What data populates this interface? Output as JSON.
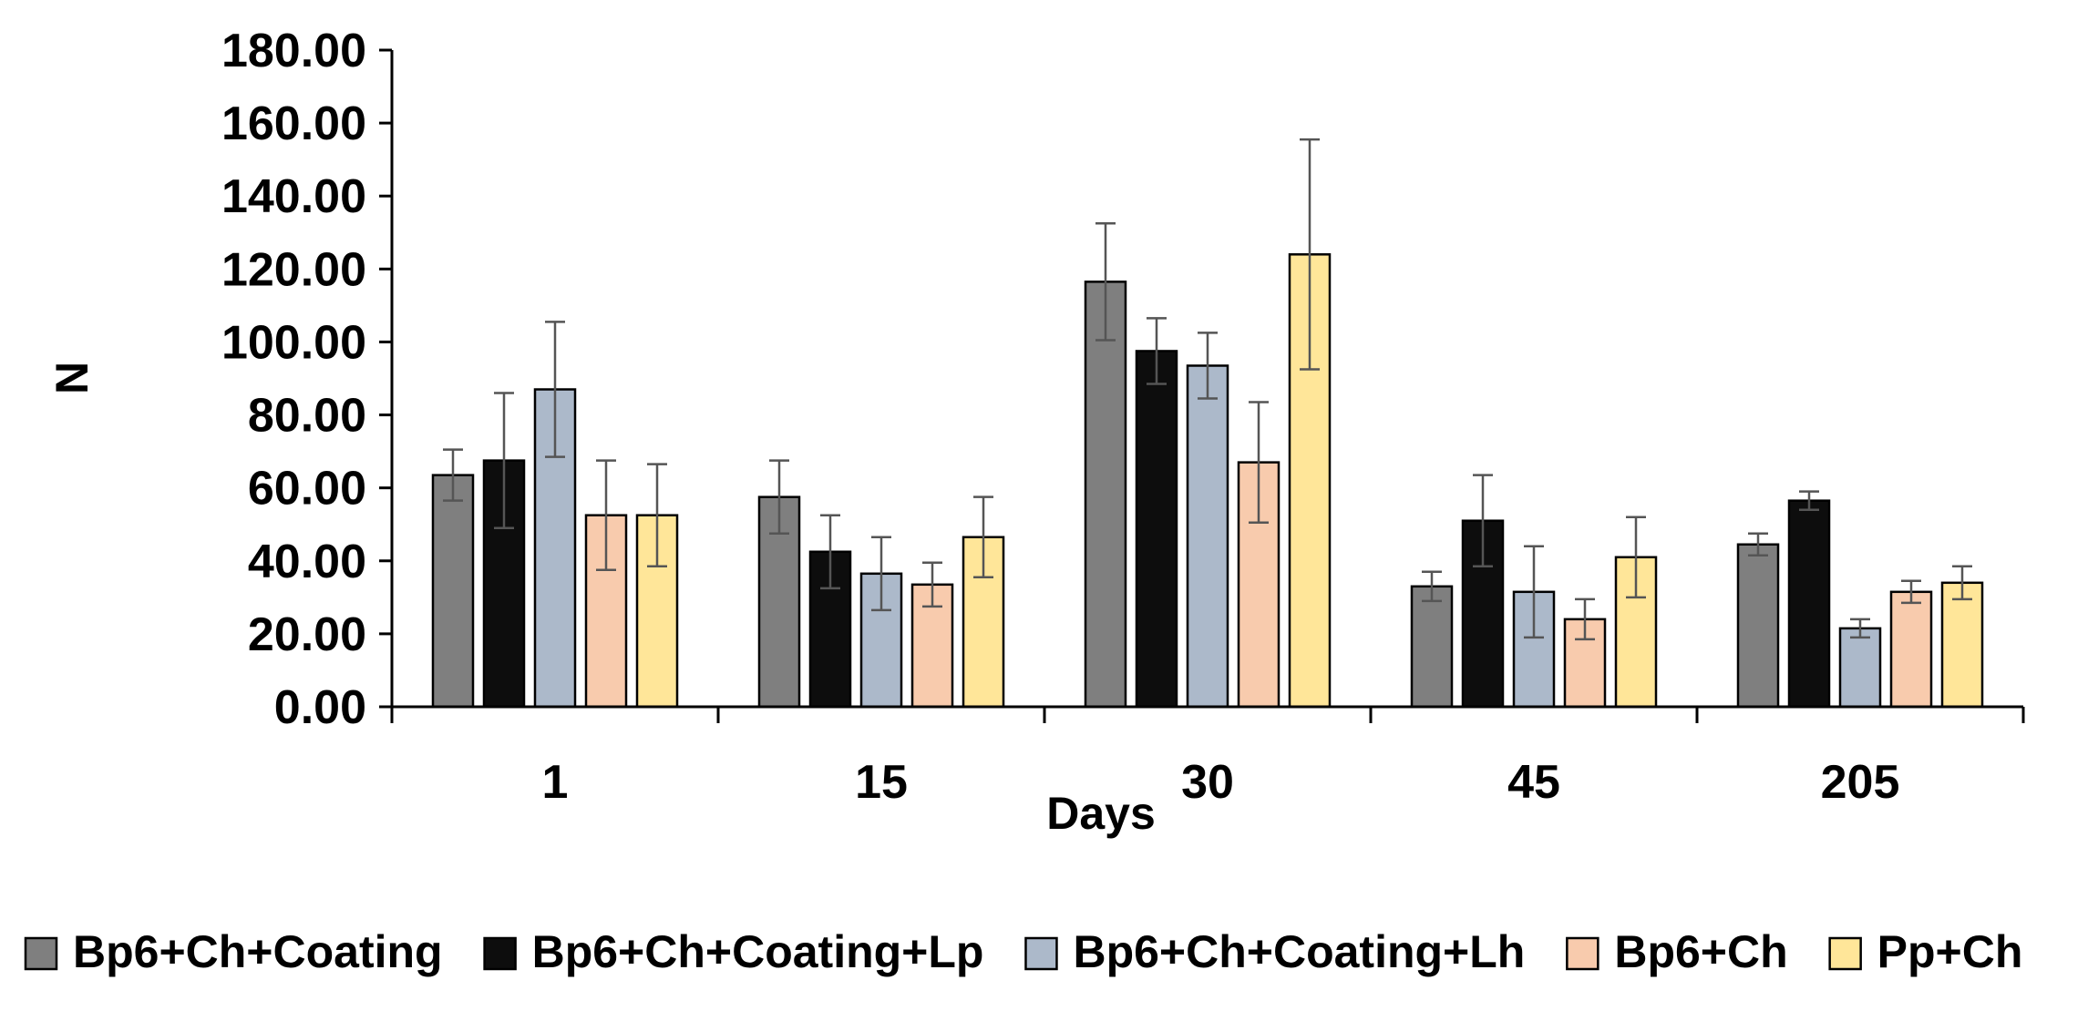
{
  "chart_data": {
    "type": "bar",
    "title": "",
    "xlabel": "Days",
    "ylabel": "N",
    "ylim": [
      0,
      180
    ],
    "yticks": [
      0,
      20,
      40,
      60,
      80,
      100,
      120,
      140,
      160,
      180
    ],
    "ytick_labels": [
      "0.00",
      "20.00",
      "40.00",
      "60.00",
      "80.00",
      "100.00",
      "120.00",
      "140.00",
      "160.00",
      "180.00"
    ],
    "categories": [
      "1",
      "15",
      "30",
      "45",
      "205"
    ],
    "legend_position": "bottom",
    "grid": false,
    "series": [
      {
        "name": "Bp6+Ch+Coating",
        "color": "#7f7f7f",
        "values": [
          63.5,
          57.5,
          116.5,
          33,
          44.5
        ],
        "errors": [
          7,
          10,
          16,
          4,
          3
        ]
      },
      {
        "name": "Bp6+Ch+Coating+Lp",
        "color": "#0d0d0d",
        "values": [
          67.5,
          42.5,
          97.5,
          51,
          56.5
        ],
        "errors": [
          18.5,
          10,
          9,
          12.5,
          2.5
        ]
      },
      {
        "name": "Bp6+Ch+Coating+Lh",
        "color": "#acb9ca",
        "values": [
          87,
          36.5,
          93.5,
          31.5,
          21.5
        ],
        "errors": [
          18.5,
          10,
          9,
          12.5,
          2.5
        ]
      },
      {
        "name": "Bp6+Ch",
        "color": "#f8cbad",
        "values": [
          52.5,
          33.5,
          67,
          24,
          31.5
        ],
        "errors": [
          15,
          6,
          16.5,
          5.5,
          3
        ]
      },
      {
        "name": "Pp+Ch",
        "color": "#ffe699",
        "values": [
          52.5,
          46.5,
          124,
          41,
          34
        ],
        "errors": [
          14,
          11,
          31.5,
          11,
          4.5
        ]
      }
    ]
  }
}
